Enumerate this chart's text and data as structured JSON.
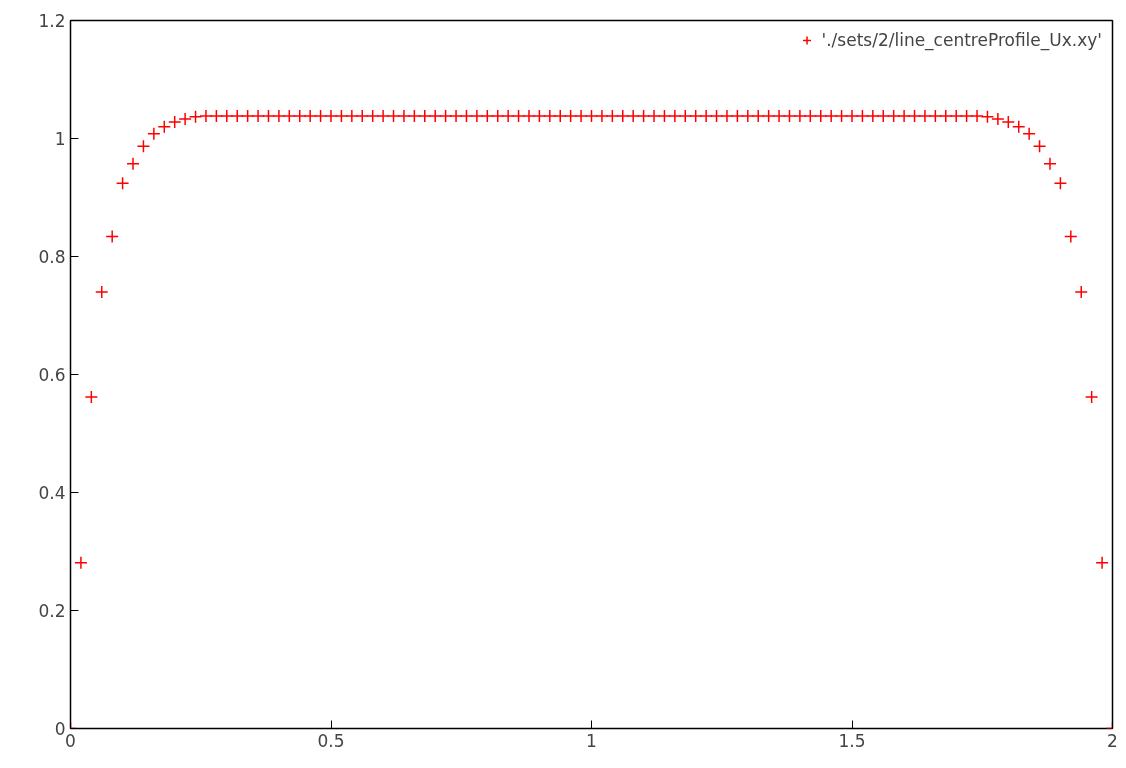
{
  "chart_data": {
    "type": "scatter",
    "marker": "cross",
    "legend": "top right",
    "grid": false,
    "xlim": [
      0,
      2
    ],
    "xticks": [
      0,
      0.5,
      1,
      1.5,
      2
    ],
    "ylim": [
      0,
      1.2
    ],
    "yticks": [
      0,
      0.2,
      0.4,
      0.6,
      0.8,
      1,
      1.2
    ],
    "x": [
      0,
      0.02,
      0.04,
      0.06,
      0.08,
      0.1,
      0.12,
      0.14,
      0.16,
      0.18,
      0.2,
      0.22,
      0.24,
      0.26,
      0.28,
      0.3,
      0.32,
      0.34,
      0.36,
      0.38,
      0.4,
      0.42,
      0.44,
      0.46,
      0.48,
      0.5,
      0.52,
      0.54,
      0.56,
      0.58,
      0.6,
      0.62,
      0.64,
      0.66,
      0.68,
      0.7,
      0.72,
      0.74,
      0.76,
      0.78,
      0.8,
      0.82,
      0.84,
      0.86,
      0.88,
      0.9,
      0.92,
      0.94,
      0.96,
      0.98,
      1,
      1.02,
      1.04,
      1.06,
      1.08,
      1.1,
      1.12,
      1.14,
      1.16,
      1.18,
      1.2,
      1.22,
      1.24,
      1.26,
      1.28,
      1.3,
      1.32,
      1.34,
      1.36,
      1.38,
      1.4,
      1.42,
      1.44,
      1.46,
      1.48,
      1.5,
      1.52,
      1.54,
      1.56,
      1.58,
      1.6,
      1.62,
      1.64,
      1.66,
      1.68,
      1.7,
      1.72,
      1.74,
      1.76,
      1.78,
      1.8,
      1.82,
      1.84,
      1.86,
      1.88,
      1.9,
      1.92,
      1.94,
      1.96,
      1.98,
      2
    ],
    "series": [
      {
        "name": "'./sets/2/line_centreProfile_Ux.xy'",
        "color": "#ff0000",
        "values": [
          0,
          0.281,
          0.562,
          0.74,
          0.834,
          0.924,
          0.957,
          0.987,
          1.008,
          1.02,
          1.028,
          1.033,
          1.037,
          1.038,
          1.038,
          1.038,
          1.038,
          1.038,
          1.038,
          1.038,
          1.038,
          1.038,
          1.038,
          1.038,
          1.038,
          1.038,
          1.038,
          1.038,
          1.038,
          1.038,
          1.038,
          1.038,
          1.038,
          1.038,
          1.038,
          1.038,
          1.038,
          1.038,
          1.038,
          1.038,
          1.038,
          1.038,
          1.038,
          1.038,
          1.038,
          1.038,
          1.038,
          1.038,
          1.038,
          1.038,
          1.038,
          1.038,
          1.038,
          1.038,
          1.038,
          1.038,
          1.038,
          1.038,
          1.038,
          1.038,
          1.038,
          1.038,
          1.038,
          1.038,
          1.038,
          1.038,
          1.038,
          1.038,
          1.038,
          1.038,
          1.038,
          1.038,
          1.038,
          1.038,
          1.038,
          1.038,
          1.038,
          1.038,
          1.038,
          1.038,
          1.038,
          1.038,
          1.038,
          1.038,
          1.038,
          1.038,
          1.038,
          1.038,
          1.037,
          1.033,
          1.028,
          1.02,
          1.008,
          0.987,
          0.957,
          0.924,
          0.834,
          0.74,
          0.562,
          0.281,
          0
        ]
      }
    ]
  }
}
